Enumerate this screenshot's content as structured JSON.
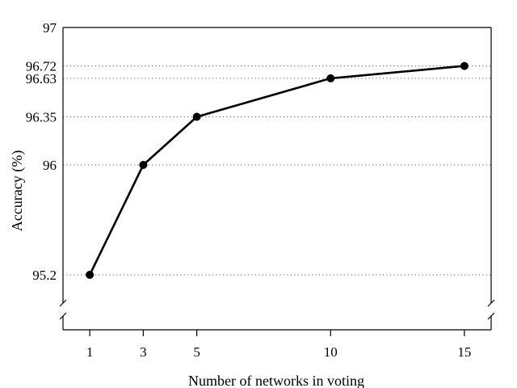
{
  "chart_data": {
    "type": "line",
    "title": "",
    "xlabel": "Number of networks in voting",
    "ylabel": "Accuracy (%)",
    "x": [
      1,
      3,
      5,
      10,
      15
    ],
    "series": [
      {
        "values": [
          95.2,
          96.0,
          96.35,
          96.63,
          96.72
        ]
      }
    ],
    "x_ticks": [
      1,
      3,
      5,
      10,
      15
    ],
    "x_tick_labels": [
      "1",
      "3",
      "5",
      "10",
      "15"
    ],
    "y_ticks": [
      95.2,
      96,
      96.35,
      96.63,
      96.72,
      97
    ],
    "y_tick_labels": [
      "95.2",
      "96",
      "96.35",
      "96.63",
      "96.72",
      "97"
    ],
    "ylim": [
      94.8,
      97
    ],
    "xlim": [
      0,
      16
    ],
    "y_axis_break": true,
    "grid": "horizontal dotted lines at y ticks",
    "legend": "none",
    "line_color": "#000000",
    "marker": "filled circle"
  }
}
